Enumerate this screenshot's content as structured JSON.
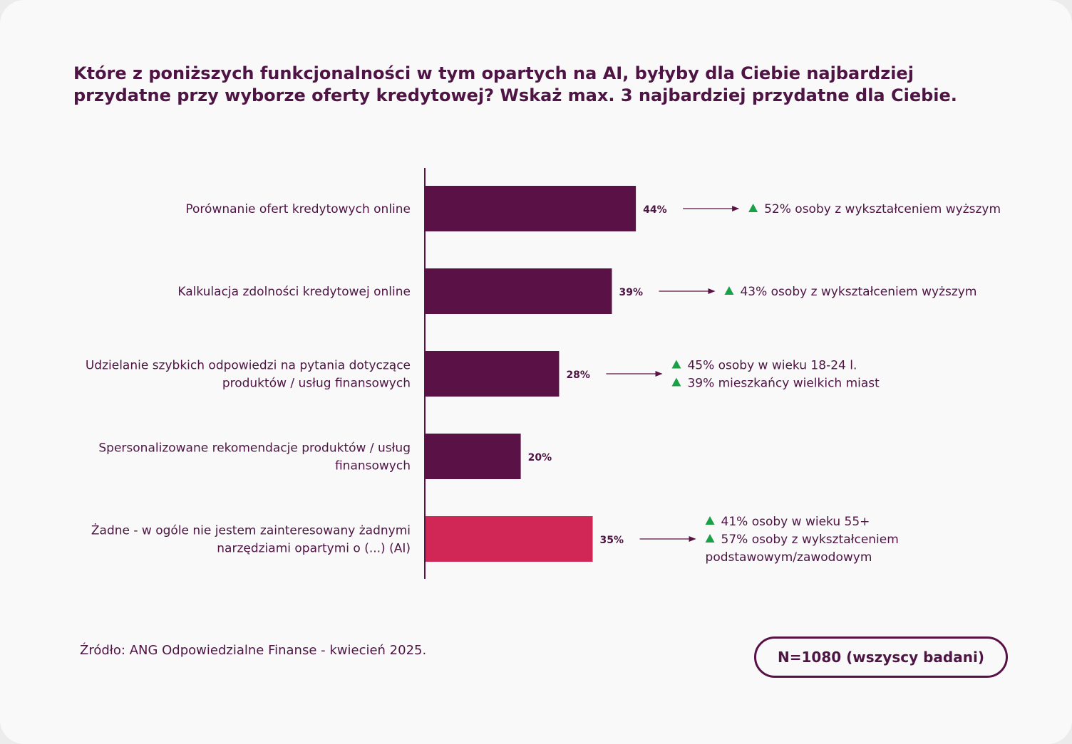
{
  "title": {
    "line1": "Które z poniższych funkcjonalności w tym opartych na AI, byłyby dla Ciebie najbardziej",
    "line2": "przydatne przy wyborze oferty kredytowej? Wskaż max. 3 najbardziej przydatne dla Ciebie."
  },
  "source": "Źródło: ANG Odpowiedzialne Finanse - kwiecień 2025.",
  "sample_badge": "N=1080 (wszyscy badani)",
  "colors": {
    "bar": "#5a1146",
    "bar_highlight": "#d12757",
    "text": "#4e1444",
    "up_triangle": "#1aa046",
    "axis": "#5a1146"
  },
  "chart_data": {
    "type": "bar",
    "orientation": "horizontal",
    "unit": "%",
    "categories": [
      [
        "Porównanie ofert kredytowych online"
      ],
      [
        "Kalkulacja zdolności kredytowej online"
      ],
      [
        "Udzielanie szybkich odpowiedzi na pytania dotyczące",
        "produktów / usług finansowych"
      ],
      [
        "Spersonalizowane rekomendacje produktów / usług",
        "finansowych"
      ],
      [
        "Żadne - w ogóle nie jestem zainteresowany żadnymi",
        "narzędziami opartymi o (...) (AI)"
      ]
    ],
    "values": [
      44,
      39,
      28,
      20,
      35
    ],
    "value_labels": [
      "44%",
      "39%",
      "28%",
      "20%",
      "35%"
    ],
    "highlighted_index": 4,
    "annotations": [
      [
        {
          "up": true,
          "text": "52% osoby z wykształceniem wyższym"
        }
      ],
      [
        {
          "up": true,
          "text": "43% osoby z wykształceniem wyższym"
        }
      ],
      [
        {
          "up": true,
          "text": "45% osoby w wieku 18-24 l."
        },
        {
          "up": true,
          "text": "39% mieszkańcy wielkich miast"
        }
      ],
      [],
      [
        {
          "up": true,
          "text": "41% osoby w wieku 55+"
        },
        {
          "up": true,
          "text": "57% osoby z wykształceniem"
        },
        {
          "up": false,
          "text": "podstawowym/zawodowym"
        }
      ]
    ],
    "grid": false,
    "legend": "none"
  }
}
